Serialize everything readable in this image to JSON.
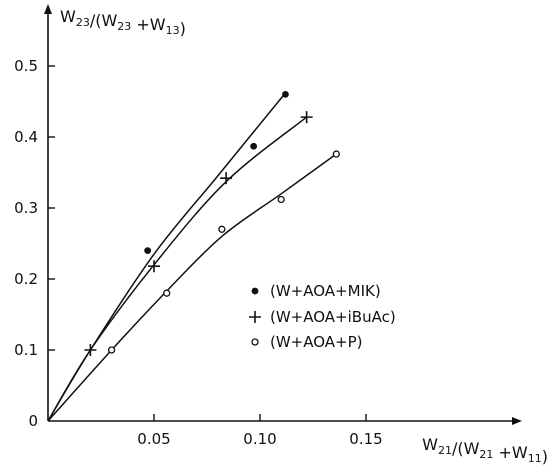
{
  "chart_data": {
    "type": "scatter",
    "xlabel": "W21/(W21+W11)",
    "ylabel": "W23/(W23+W13)",
    "xlim": [
      0,
      0.18
    ],
    "ylim": [
      0,
      0.55
    ],
    "x_ticks": [
      "0.05",
      "0.10",
      "0.15"
    ],
    "y_ticks": [
      "0",
      "0.1",
      "0.2",
      "0.3",
      "0.4",
      "0.5"
    ],
    "grid": false,
    "legend_position": "lower-right",
    "series": [
      {
        "name": "(W+AOA+MIK)",
        "marker": "filled-circle",
        "points": [
          [
            0.047,
            0.24
          ],
          [
            0.097,
            0.387
          ],
          [
            0.112,
            0.46
          ]
        ],
        "curve": [
          [
            0,
            0
          ],
          [
            0.02,
            0.1
          ],
          [
            0.05,
            0.235
          ],
          [
            0.08,
            0.345
          ],
          [
            0.112,
            0.462
          ]
        ]
      },
      {
        "name": "(W+AOA+iBuAc)",
        "marker": "plus",
        "points": [
          [
            0.02,
            0.1
          ],
          [
            0.05,
            0.218
          ],
          [
            0.084,
            0.342
          ],
          [
            0.122,
            0.428
          ]
        ],
        "curve": [
          [
            0,
            0
          ],
          [
            0.02,
            0.1
          ],
          [
            0.05,
            0.22
          ],
          [
            0.084,
            0.337
          ],
          [
            0.122,
            0.428
          ]
        ]
      },
      {
        "name": "(W+AOA+P)",
        "marker": "open-circle",
        "points": [
          [
            0.03,
            0.1
          ],
          [
            0.056,
            0.18
          ],
          [
            0.082,
            0.27
          ],
          [
            0.11,
            0.312
          ],
          [
            0.136,
            0.376
          ]
        ],
        "curve": [
          [
            0,
            0
          ],
          [
            0.03,
            0.1
          ],
          [
            0.056,
            0.183
          ],
          [
            0.082,
            0.26
          ],
          [
            0.11,
            0.32
          ],
          [
            0.136,
            0.376
          ]
        ]
      }
    ]
  }
}
